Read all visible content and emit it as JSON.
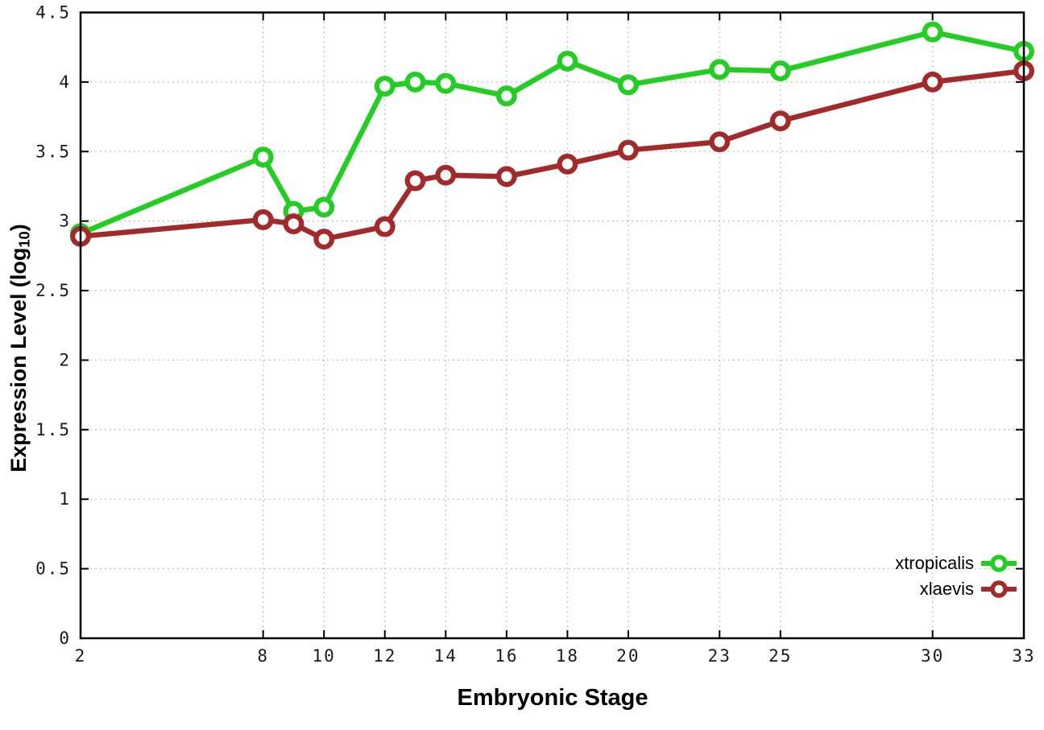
{
  "chart_data": {
    "type": "line",
    "title": "",
    "xlabel": "Embryonic Stage",
    "ylabel": "Expression Level (log10)",
    "ylabel_parts": {
      "prefix": "Expression Level (log",
      "sub": "10",
      "suffix": ")"
    },
    "xlim": [
      2,
      33
    ],
    "ylim": [
      0,
      4.5
    ],
    "x_ticks": [
      2,
      8,
      10,
      12,
      14,
      16,
      18,
      20,
      23,
      25,
      30,
      33
    ],
    "y_ticks": [
      0,
      0.5,
      1,
      1.5,
      2,
      2.5,
      3,
      3.5,
      4,
      4.5
    ],
    "grid": true,
    "legend_position": "bottom-right-inside",
    "marker": "open-circle",
    "axis_color": "#000000",
    "grid_color": "#b0b0b0",
    "tick_label_color": "#1a1a1a",
    "x": [
      2,
      8,
      9,
      10,
      12,
      13,
      14,
      16,
      18,
      20,
      23,
      25,
      30,
      33
    ],
    "series": [
      {
        "name": "xtropicalis",
        "color": "#23cd23",
        "values": [
          2.91,
          3.46,
          3.07,
          3.1,
          3.97,
          4.0,
          3.99,
          3.9,
          4.15,
          3.98,
          4.09,
          4.08,
          4.36,
          4.22
        ]
      },
      {
        "name": "xlaevis",
        "color": "#a32a2a",
        "values": [
          2.89,
          3.01,
          2.98,
          2.87,
          2.96,
          3.29,
          3.33,
          3.32,
          3.41,
          3.51,
          3.57,
          3.72,
          4.0,
          4.08
        ]
      }
    ]
  }
}
